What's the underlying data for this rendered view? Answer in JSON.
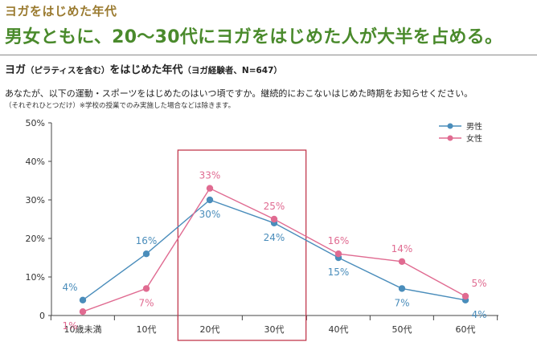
{
  "header": {
    "kicker": "ヨガをはじめた年代",
    "headline": "男女ともに、20～30代にヨガをはじめた人が大半を占める。"
  },
  "chart_data": {
    "type": "line",
    "title": "ヨガ",
    "title_paren1": "（ピラティスを含む）",
    "title_mid": "をはじめた年代",
    "title_paren2": "（ヨガ経験者、N=647）",
    "question": "あなたが、以下の運動・スポーツをはじめたのはいつ頃ですか。継続的におこないはじめた時期をお知らせください。",
    "note": "（それぞれひとつだけ）※学校の授業でのみ実施した場合などは除きます。",
    "categories": [
      "10歳未満",
      "10代",
      "20代",
      "30代",
      "40代",
      "50代",
      "60代"
    ],
    "ylim": [
      0,
      50
    ],
    "yticks": [
      0,
      10,
      20,
      30,
      40,
      50
    ],
    "ytick_labels": [
      "0",
      "10%",
      "20%",
      "30%",
      "40%",
      "50%"
    ],
    "series": [
      {
        "name": "男性",
        "color": "#4a8dbb",
        "values": [
          4,
          16,
          30,
          24,
          15,
          7,
          4
        ],
        "labels": [
          "4%",
          "16%",
          "30%",
          "24%",
          "15%",
          "7%",
          "4%"
        ]
      },
      {
        "name": "女性",
        "color": "#e06b91",
        "values": [
          1,
          7,
          33,
          25,
          16,
          14,
          5
        ],
        "labels": [
          "1%",
          "7%",
          "33%",
          "25%",
          "16%",
          "14%",
          "5%"
        ]
      }
    ],
    "highlight_categories": [
      "20代",
      "30代"
    ],
    "highlight_color": "#c23a4f",
    "legend_position": "top-right"
  }
}
